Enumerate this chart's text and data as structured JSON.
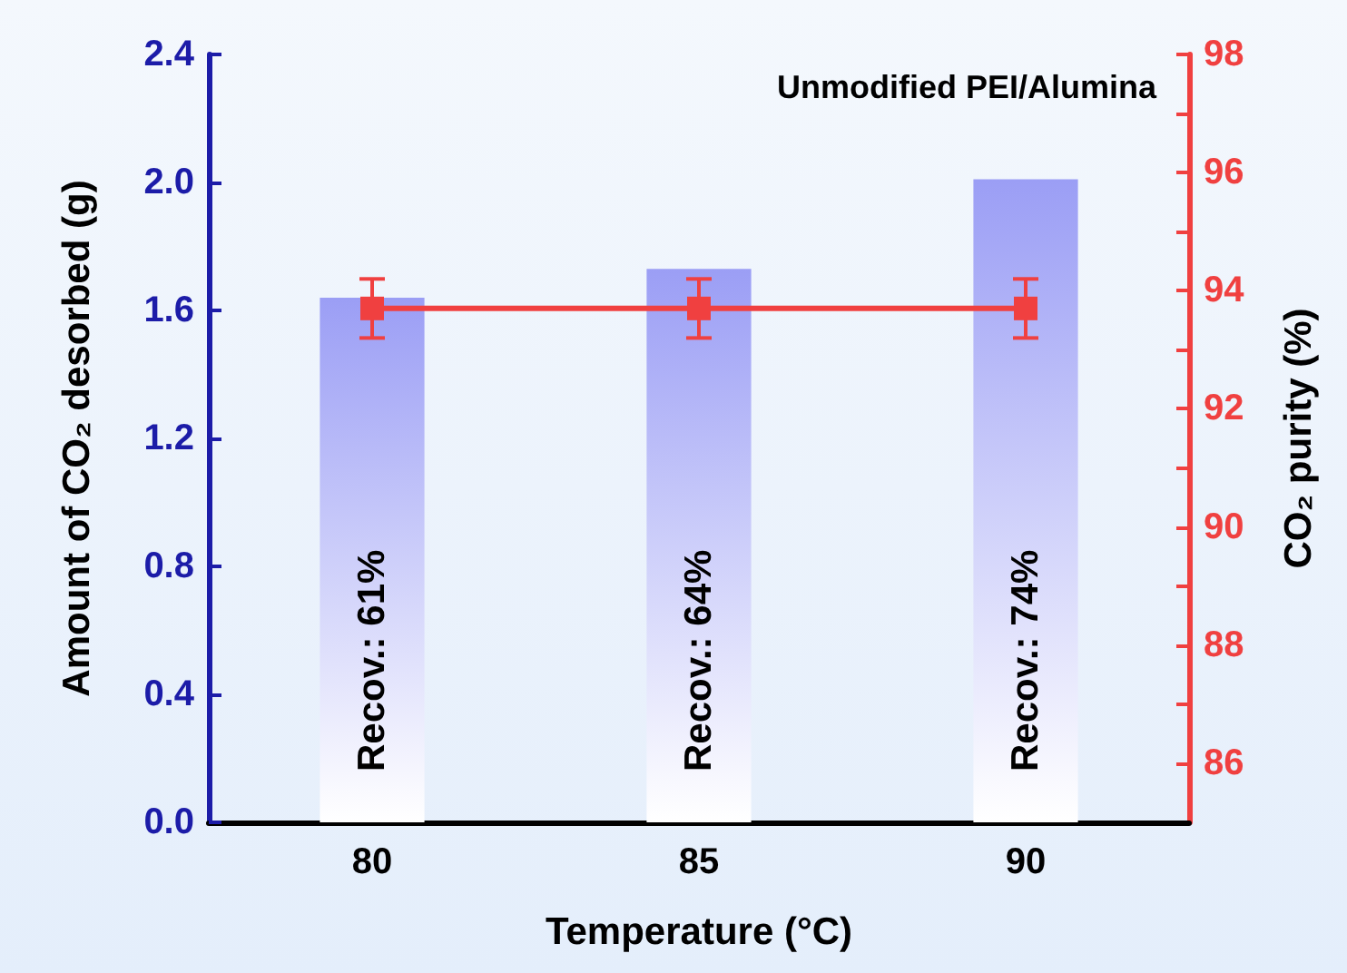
{
  "chart_data": {
    "type": "bar",
    "title": "Unmodified PEI/Alumina",
    "xlabel": "Temperature (°C)",
    "ylabel": "Amount of CO₂ desorbed (g)",
    "y2label": "CO₂ purity (%)",
    "categories": [
      "80",
      "85",
      "90"
    ],
    "series": [
      {
        "color": "#9b9ef5",
        "values": [
          1.64,
          1.73,
          2.01
        ]
      },
      {
        "type": "line",
        "axis": "y2",
        "color": "#f04040",
        "values": [
          93.7,
          93.7,
          93.7
        ],
        "errors": [
          0.5,
          0.5,
          0.5
        ],
        "marker": "square",
        "line_style": "solid"
      }
    ],
    "ylim": [
      0,
      2.4
    ],
    "yticks": [
      {
        "value": 0,
        "label": "0.0"
      },
      0.4,
      0.8,
      1.2,
      1.6,
      {
        "value": 2,
        "label": "2.0"
      },
      2.4
    ],
    "y2lim": [
      85,
      98
    ],
    "y2ticks": [
      86,
      {
        "value": 87,
        "label": null
      },
      88,
      {
        "value": 89,
        "label": null
      },
      90,
      {
        "value": 91,
        "label": null
      },
      92,
      {
        "value": 93,
        "label": null
      },
      94,
      {
        "value": 95,
        "label": null
      },
      96,
      {
        "value": 97,
        "label": null
      },
      98
    ],
    "annotations": [
      "Recov.: 61%",
      "Recov.: 64%",
      "Recov.: 74%"
    ],
    "grid": false
  }
}
